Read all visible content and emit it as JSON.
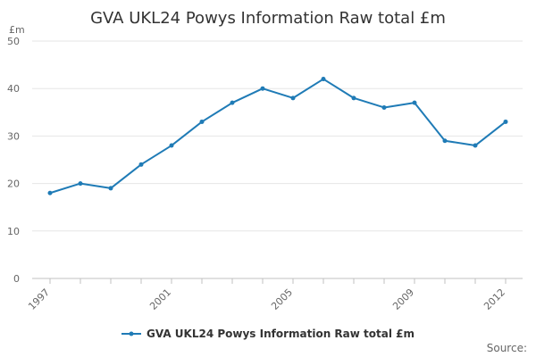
{
  "chart_data": {
    "type": "line",
    "title": "GVA UKL24 Powys Information Raw total £m",
    "ylabel": "£m",
    "xlabel": "",
    "ylim": [
      0,
      50
    ],
    "yticks": [
      "0",
      "10",
      "20",
      "30",
      "40",
      "50"
    ],
    "xlim": [
      1997,
      2012
    ],
    "xticks": [
      "1997",
      "2001",
      "2005",
      "2009",
      "2012"
    ],
    "grid": true,
    "legend_position": "bottom-center",
    "series": [
      {
        "name": "GVA UKL24 Powys Information Raw total £m",
        "color": "#1f7bb6",
        "x": [
          1997,
          1998,
          1999,
          2000,
          2001,
          2002,
          2003,
          2004,
          2005,
          2006,
          2007,
          2008,
          2009,
          2010,
          2011,
          2012
        ],
        "values": [
          18,
          20,
          19,
          24,
          28,
          33,
          37,
          40,
          38,
          42,
          38,
          36,
          37,
          29,
          28,
          33
        ]
      }
    ],
    "source_label": "Source:"
  }
}
